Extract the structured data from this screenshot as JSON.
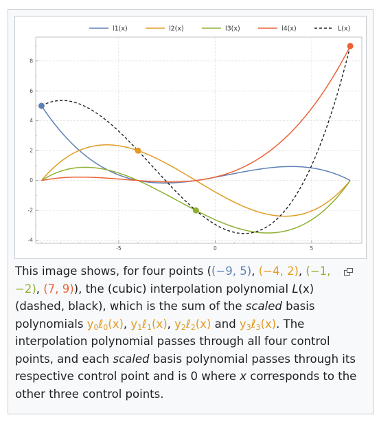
{
  "chart_data": {
    "type": "line",
    "xlim": [
      -9.3,
      7.6
    ],
    "ylim": [
      -4.2,
      9.6
    ],
    "x_ticks": [
      -5,
      0,
      5
    ],
    "y_ticks": [
      -4,
      -2,
      0,
      2,
      4,
      6,
      8
    ],
    "x_tick_labels": [
      "-5",
      "0",
      "5"
    ],
    "y_tick_labels": [
      "-4",
      "-2",
      "0",
      "2",
      "4",
      "6",
      "8"
    ],
    "grid": true,
    "legend_position": "top",
    "points": [
      {
        "x": -9,
        "y": 5,
        "color": "#5e81b5"
      },
      {
        "x": -4,
        "y": 2,
        "color": "#e19c24"
      },
      {
        "x": -1,
        "y": -2,
        "color": "#8fb032"
      },
      {
        "x": 7,
        "y": 9,
        "color": "#eb6235"
      }
    ],
    "series": [
      {
        "name": "l1(x)",
        "color": "#5e81b5",
        "style": "solid",
        "formula": "y0*l0",
        "point_index": 0
      },
      {
        "name": "l2(x)",
        "color": "#e19c24",
        "style": "solid",
        "formula": "y1*l1",
        "point_index": 1
      },
      {
        "name": "l3(x)",
        "color": "#8fb032",
        "style": "solid",
        "formula": "y2*l2",
        "point_index": 2
      },
      {
        "name": "l4(x)",
        "color": "#eb6235",
        "style": "solid",
        "formula": "y3*l3",
        "point_index": 3
      },
      {
        "name": "L(x)",
        "color": "#222222",
        "style": "dashed",
        "formula": "sum"
      }
    ]
  },
  "caption": {
    "text_1": "This image shows, for four points (",
    "p0": "(−9, 5)",
    "sep1": ", ",
    "p1": "(−4, 2)",
    "sep2": ", ",
    "p2": "(−1, −2)",
    "sep3": ", ",
    "p3": "(7, 9)",
    "text_2": "), the (cubic) interpolation polynomial ",
    "Lx": "L",
    "Lx_arg": "(x)",
    "text_3": " (dashed, black), which is the sum of the ",
    "scaled_1": "scaled",
    "text_4": " basis polynomials ",
    "y0": "y",
    "y0_sub": "0",
    "l0": "ℓ",
    "l0_sub": "0",
    "l0_arg": "(x)",
    "sep4": ", ",
    "y1": "y",
    "y1_sub": "1",
    "l1": "ℓ",
    "l1_sub": "1",
    "l1_arg": "(x)",
    "sep5": ", ",
    "y2": "y",
    "y2_sub": "2",
    "l2": "ℓ",
    "l2_sub": "2",
    "l2_arg": "(x)",
    "text_5": " and ",
    "y3": "y",
    "y3_sub": "3",
    "l3": "ℓ",
    "l3_sub": "3",
    "l3_arg": "(x)",
    "text_6": ". The interpolation polynomial passes through all four control points, and each ",
    "scaled_2": "scaled",
    "text_7": " basis polynomial passes through its respective control point and is 0 where ",
    "x_var": "x",
    "text_8": " corresponds to the other three control points."
  }
}
